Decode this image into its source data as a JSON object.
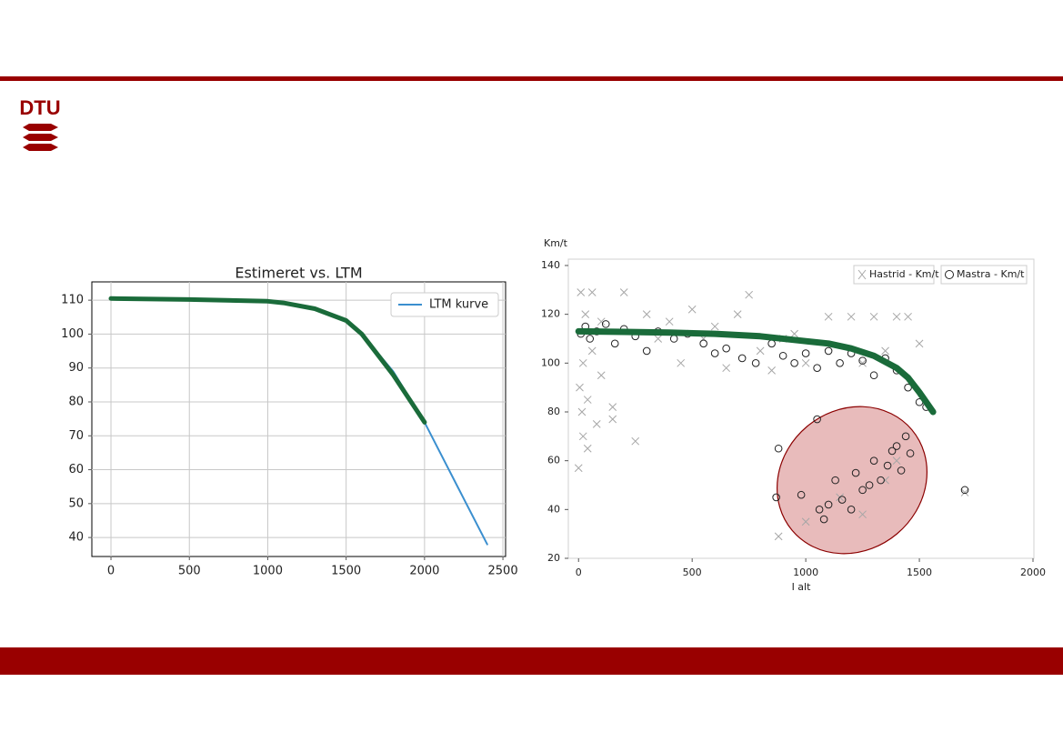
{
  "logo": "DTU",
  "chart_data": [
    {
      "type": "line",
      "title": "Estimeret vs. LTM",
      "xlim": [
        -122,
        2517
      ],
      "ylim": [
        34.4,
        115.4
      ],
      "xticks": [
        0,
        500,
        1000,
        1500,
        2000,
        2500
      ],
      "yticks": [
        40,
        50,
        60,
        70,
        80,
        90,
        100,
        110
      ],
      "grid": true,
      "legend": "upper right",
      "series": [
        {
          "name": "LTM kurve",
          "color": "#3b8fcf",
          "width": 2,
          "x": [
            0,
            500,
            1000,
            1100,
            1300,
            1500,
            1600,
            1800,
            2000,
            2200,
            2400
          ],
          "values": [
            110.5,
            110.2,
            109.7,
            109.2,
            107.5,
            104,
            100,
            89,
            74,
            56,
            38
          ]
        },
        {
          "color": "#1a6b3a",
          "width": 5,
          "x": [
            0,
            500,
            1000,
            1100,
            1300,
            1500,
            1600,
            1800,
            2000
          ],
          "values": [
            110.5,
            110.2,
            109.7,
            109.2,
            107.5,
            104,
            100,
            88,
            74
          ]
        }
      ]
    },
    {
      "type": "scatter",
      "ylabel": "Km/t",
      "xlabel": "I alt",
      "xlim": [
        -45,
        2004
      ],
      "ylim": [
        20,
        142.6
      ],
      "xticks": [
        0,
        500,
        1000,
        1500,
        2000
      ],
      "yticks": [
        20,
        40,
        60,
        80,
        100,
        120,
        140
      ],
      "grid": false,
      "legend": "upper right",
      "series": [
        {
          "name": "Hastrid - Km/t",
          "color": "#a6a6a6",
          "marker": "x",
          "x": [
            0,
            5,
            10,
            15,
            20,
            30,
            40,
            60,
            80,
            100,
            150,
            200,
            250,
            300,
            350,
            400,
            450,
            500,
            550,
            600,
            650,
            700,
            750,
            800,
            850,
            900,
            950,
            1000,
            1100,
            1200,
            1250,
            1300,
            1350,
            1400,
            1450,
            1500,
            20,
            40,
            60,
            100,
            150,
            880,
            1000,
            1150,
            1250,
            1350,
            1400,
            1700
          ],
          "values": [
            57,
            90,
            129,
            80,
            100,
            120,
            85,
            129,
            75,
            117,
            82,
            129,
            68,
            120,
            110,
            117,
            100,
            122,
            110,
            115,
            98,
            120,
            128,
            105,
            97,
            110,
            112,
            100,
            119,
            119,
            100,
            119,
            105,
            119,
            119,
            108,
            70,
            65,
            105,
            95,
            77,
            29,
            35,
            45,
            38,
            52,
            60,
            47
          ]
        },
        {
          "name": "Mastra - Km/t",
          "color": "#222222",
          "marker": "circle",
          "x": [
            10,
            30,
            50,
            80,
            120,
            160,
            200,
            250,
            300,
            350,
            420,
            480,
            550,
            600,
            650,
            720,
            780,
            850,
            900,
            950,
            1000,
            1050,
            1100,
            1150,
            1200,
            1250,
            1300,
            1350,
            1400,
            1450,
            1500,
            1530,
            880,
            870,
            980,
            1060,
            1100,
            1130,
            1160,
            1200,
            1220,
            1250,
            1280,
            1300,
            1330,
            1360,
            1380,
            1400,
            1420,
            1440,
            1460,
            1050,
            1080,
            1700
          ],
          "values": [
            112,
            115,
            110,
            113,
            116,
            108,
            114,
            111,
            105,
            113,
            110,
            112,
            108,
            104,
            106,
            102,
            100,
            108,
            103,
            100,
            104,
            98,
            105,
            100,
            104,
            101,
            95,
            102,
            97,
            90,
            84,
            82,
            65,
            45,
            46,
            40,
            42,
            52,
            44,
            40,
            55,
            48,
            50,
            60,
            52,
            58,
            64,
            66,
            56,
            70,
            63,
            77,
            36,
            48
          ]
        },
        {
          "color": "#1a6b3a",
          "marker": "line",
          "width": 7,
          "x": [
            0,
            200,
            400,
            600,
            800,
            1000,
            1100,
            1200,
            1300,
            1400,
            1450,
            1500,
            1560
          ],
          "values": [
            113,
            112.8,
            112.5,
            112,
            111,
            109,
            108,
            106,
            103,
            98,
            94,
            88,
            80
          ]
        }
      ]
    }
  ]
}
